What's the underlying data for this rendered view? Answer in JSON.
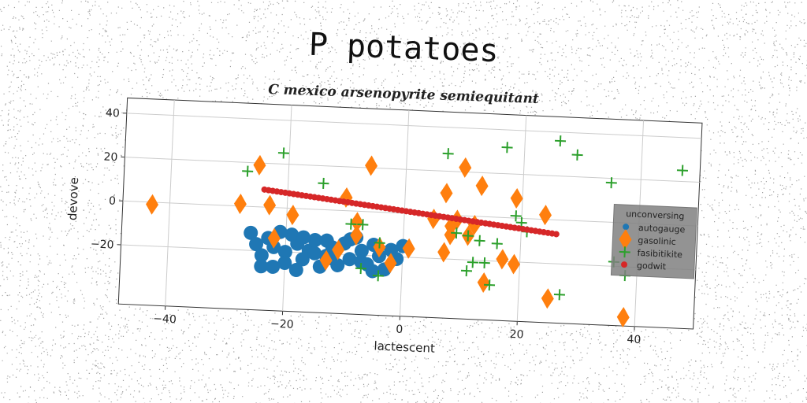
{
  "title": "P potatoes",
  "subtitle": "C mexico arsenopyrite semiequitant",
  "chart_data": {
    "type": "scatter",
    "xlabel": "lactescent",
    "ylabel": "devove",
    "xlim": [
      -48,
      50
    ],
    "ylim": [
      -47,
      47
    ],
    "x_ticks": [
      -40,
      -20,
      0,
      20,
      40
    ],
    "y_ticks": [
      -20,
      0,
      20,
      40
    ],
    "grid": true,
    "legend": {
      "title": "unconversing",
      "placement": "right"
    },
    "series": [
      {
        "name": "autogauge",
        "marker": "circle",
        "color": "#1f77b4",
        "points": [
          [
            -26,
            -12
          ],
          [
            -25,
            -17
          ],
          [
            -24,
            -22
          ],
          [
            -23,
            -14
          ],
          [
            -22,
            -18
          ],
          [
            -20,
            -20
          ],
          [
            -19,
            -12
          ],
          [
            -18,
            -16
          ],
          [
            -17,
            -23
          ],
          [
            -16,
            -19
          ],
          [
            -15,
            -14
          ],
          [
            -14,
            -26
          ],
          [
            -13,
            -21
          ],
          [
            -12,
            -17
          ],
          [
            -11,
            -25
          ],
          [
            -10,
            -15
          ],
          [
            -9,
            -22
          ],
          [
            -8,
            -12
          ],
          [
            -7,
            -18
          ],
          [
            -6,
            -24
          ],
          [
            -5,
            -15
          ],
          [
            -4,
            -20
          ],
          [
            -3,
            -26
          ],
          [
            -2,
            -17
          ],
          [
            -1,
            -21
          ],
          [
            0,
            -15
          ],
          [
            -22,
            -27
          ],
          [
            -20,
            -25
          ],
          [
            -18,
            -28
          ],
          [
            -24,
            -27
          ],
          [
            -15,
            -20
          ],
          [
            -13,
            -14
          ],
          [
            -9,
            -13
          ],
          [
            -5,
            -27
          ],
          [
            -17,
            -13
          ],
          [
            -21,
            -11
          ],
          [
            -12,
            -22
          ],
          [
            -7,
            -23
          ]
        ]
      },
      {
        "name": "gasolinic",
        "marker": "diamond",
        "color": "#ff7f0e",
        "points": [
          [
            -43,
            -1
          ],
          [
            -28,
            1
          ],
          [
            -25,
            19
          ],
          [
            -23,
            1
          ],
          [
            -22,
            -14
          ],
          [
            -19,
            -3
          ],
          [
            -13,
            -23
          ],
          [
            -11,
            -18
          ],
          [
            -10,
            6
          ],
          [
            -8,
            -5
          ],
          [
            -8,
            -11
          ],
          [
            -6,
            21
          ],
          [
            -4,
            -16
          ],
          [
            -2,
            -23
          ],
          [
            1,
            -16
          ],
          [
            5,
            -2
          ],
          [
            7,
            10
          ],
          [
            8,
            -5
          ],
          [
            8,
            -9
          ],
          [
            9,
            -2
          ],
          [
            10,
            22
          ],
          [
            11,
            -9
          ],
          [
            12,
            -4
          ],
          [
            13,
            14
          ],
          [
            14,
            -30
          ],
          [
            17,
            -19
          ],
          [
            19,
            -21
          ],
          [
            19,
            9
          ],
          [
            24,
            2
          ],
          [
            25,
            -36
          ],
          [
            38,
            -43
          ],
          [
            7,
            -17
          ]
        ]
      },
      {
        "name": "fasibitikite",
        "marker": "plus",
        "color": "#2ca02c",
        "points": [
          [
            -27,
            16
          ],
          [
            -21,
            25
          ],
          [
            -14,
            12
          ],
          [
            -9,
            -6
          ],
          [
            -7,
            -6
          ],
          [
            -7,
            -26
          ],
          [
            -4,
            -14
          ],
          [
            -4,
            -29
          ],
          [
            7,
            28
          ],
          [
            9,
            -8
          ],
          [
            11,
            -25
          ],
          [
            11,
            -9
          ],
          [
            12,
            -21
          ],
          [
            13,
            -11
          ],
          [
            14,
            -21
          ],
          [
            15,
            -31
          ],
          [
            16,
            -12
          ],
          [
            17,
            32
          ],
          [
            19,
            1
          ],
          [
            21,
            -6
          ],
          [
            26,
            36
          ],
          [
            29,
            30
          ],
          [
            35,
            18
          ],
          [
            36,
            -18
          ],
          [
            38,
            -24
          ],
          [
            47,
            25
          ],
          [
            27,
            -34
          ],
          [
            20,
            -2
          ]
        ]
      },
      {
        "name": "godwit",
        "marker": "circle-small",
        "color": "#d62728",
        "line": {
          "x_from": -24,
          "x_to": 26,
          "y_from": 8,
          "y_to": -6.5
        }
      }
    ]
  }
}
